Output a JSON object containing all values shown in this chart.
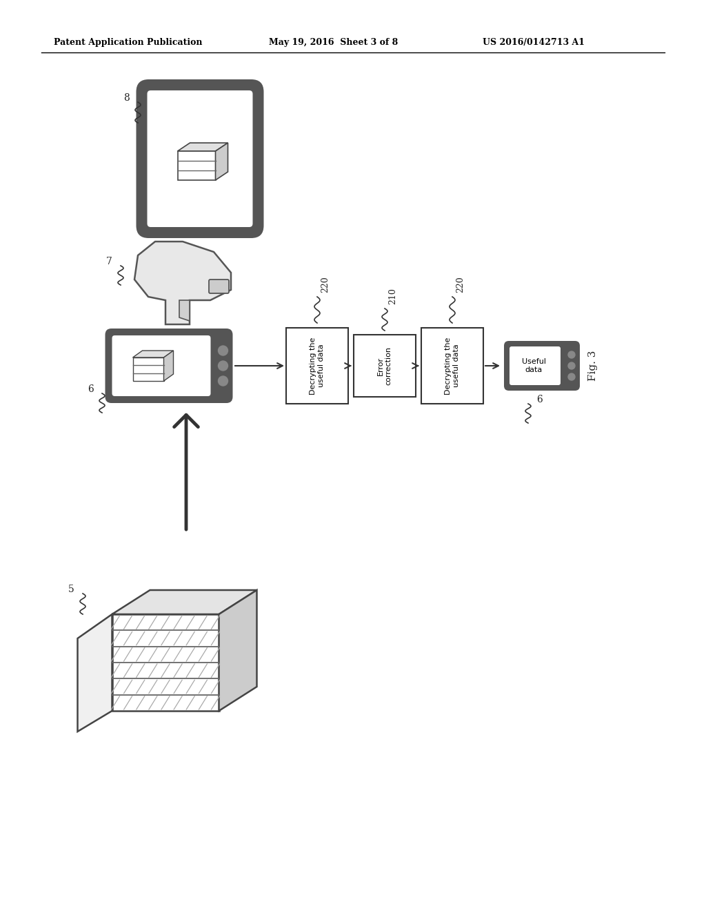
{
  "header_left": "Patent Application Publication",
  "header_mid": "May 19, 2016  Sheet 3 of 8",
  "header_right": "US 2016/0142713 A1",
  "fig_label": "Fig. 3",
  "bg_color": "#ffffff",
  "text_color": "#000000",
  "tablet_label": "8",
  "scanner_label": "7",
  "phone_left_label": "6",
  "phone_right_label": "6",
  "shelf_label": "5",
  "box1_text": "Decrypting the\nuseful data",
  "box2_text": "Error\ncorrection",
  "box3_text": "Decrypting the\nuseful data",
  "box4_text": "Useful\ndata",
  "ref220a": "220",
  "ref210": "210",
  "ref220b": "220"
}
